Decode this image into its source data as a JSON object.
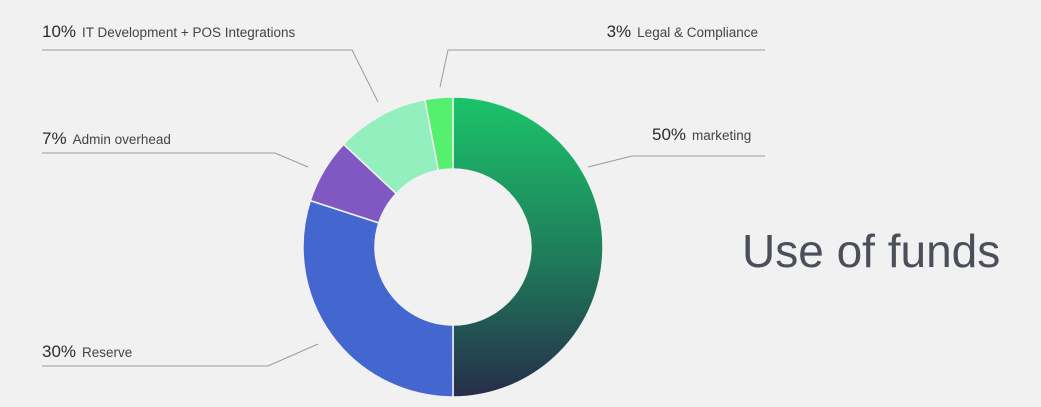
{
  "title": "Use of funds",
  "chart_data": {
    "type": "pie",
    "donut": true,
    "title": "Use of funds",
    "slices": [
      {
        "pct_label": "50%",
        "name": "marketing",
        "value": 50,
        "color": "#1bc46a",
        "color_end": "#262d4a"
      },
      {
        "pct_label": "30%",
        "name": "Reserve",
        "value": 30,
        "color": "#4367cf"
      },
      {
        "pct_label": "7%",
        "name": "Admin overhead",
        "value": 7,
        "color": "#7f58c2"
      },
      {
        "pct_label": "10%",
        "name": "IT Development + POS Integrations",
        "value": 10,
        "color": "#93efbd"
      },
      {
        "pct_label": "3%",
        "name": "Legal & Compliance",
        "value": 3,
        "color": "#55f06d"
      }
    ]
  }
}
